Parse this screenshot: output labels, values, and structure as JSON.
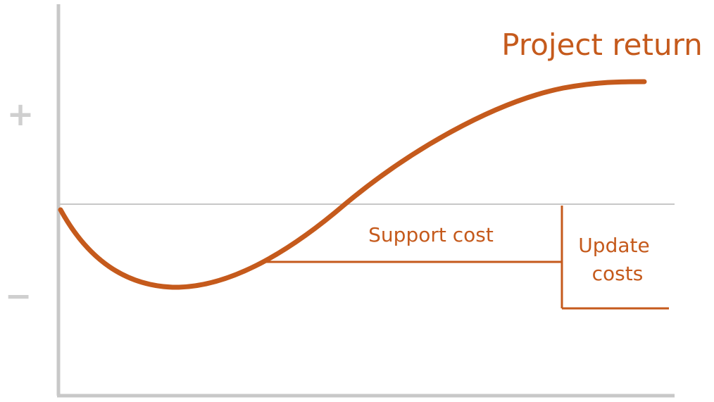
{
  "axis": {
    "positive_symbol": "+",
    "negative_symbol": "−"
  },
  "labels": {
    "project_return": "Project return",
    "support_cost": "Support cost",
    "update_costs_line1": "Update",
    "update_costs_line2": "costs"
  },
  "colors": {
    "curve": "#c55a1c",
    "axis": "#c8c8c8",
    "zero_line": "#c8c8c8"
  }
}
